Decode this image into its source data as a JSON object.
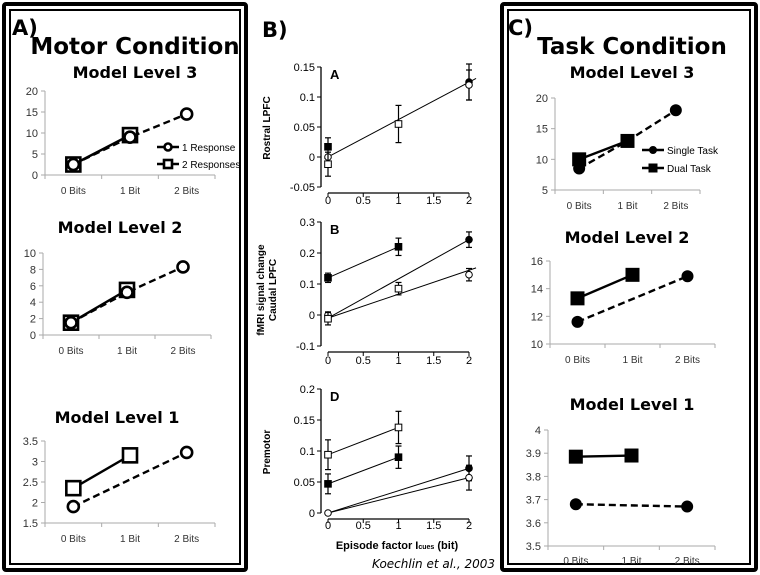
{
  "panels": {
    "a": {
      "label": "A)",
      "title": "Motor Condition"
    },
    "b": {
      "label": "B)",
      "xlabel": "Episode factor I",
      "xlabel_sub": "cues",
      "xlabel_unit": " (bit)",
      "citation": "Koechlin et al., 2003",
      "ylabel_top": "Rostral LPFC",
      "ylabel_mid_1": "fMRI signal change",
      "ylabel_mid_2": "Caudal LPFC",
      "ylabel_bottom": "Premotor"
    },
    "c": {
      "label": "C)",
      "title": "Task Condition"
    }
  },
  "chart_data": [
    {
      "id": "A3",
      "type": "line",
      "title": "Model Level 3",
      "categories": [
        "0 Bits",
        "1 Bit",
        "2 Bits"
      ],
      "ylim": [
        0,
        20
      ],
      "yticks": [
        0,
        5,
        10,
        15,
        20
      ],
      "legend": {
        "placement": "right",
        "entries": [
          "1 Response",
          "2 Responses"
        ]
      },
      "series": [
        {
          "name": "1 Response",
          "marker": "circle-open",
          "dashed": true,
          "values": [
            2.5,
            9,
            14.5
          ]
        },
        {
          "name": "2 Responses",
          "marker": "square-open",
          "dashed": false,
          "values": [
            2.5,
            9.5,
            null
          ]
        }
      ]
    },
    {
      "id": "A2",
      "type": "line",
      "title": "Model Level 2",
      "categories": [
        "0 Bits",
        "1 Bit",
        "2 Bits"
      ],
      "ylim": [
        0,
        10
      ],
      "yticks": [
        0,
        2,
        4,
        6,
        8,
        10
      ],
      "series": [
        {
          "name": "1 Response",
          "marker": "circle-open",
          "dashed": true,
          "values": [
            1.5,
            5.2,
            8.3
          ]
        },
        {
          "name": "2 Responses",
          "marker": "square-open",
          "dashed": false,
          "values": [
            1.5,
            5.5,
            null
          ]
        }
      ]
    },
    {
      "id": "A1",
      "type": "line",
      "title": "Model Level 1",
      "categories": [
        "0 Bits",
        "1 Bit",
        "2 Bits"
      ],
      "ylim": [
        1.5,
        3.5
      ],
      "yticks": [
        1.5,
        2,
        2.5,
        3,
        3.5
      ],
      "series": [
        {
          "name": "1 Response",
          "marker": "circle-open",
          "dashed": true,
          "values": [
            1.9,
            null,
            3.22
          ]
        },
        {
          "name": "2 Responses",
          "marker": "square-open",
          "dashed": false,
          "values": [
            2.35,
            3.15,
            null
          ]
        }
      ]
    },
    {
      "id": "C3",
      "type": "line",
      "title": "Model Level 3",
      "categories": [
        "0 Bits",
        "1 Bit",
        "2 Bits"
      ],
      "ylim": [
        5,
        20
      ],
      "yticks": [
        5,
        10,
        15,
        20
      ],
      "legend": {
        "placement": "right",
        "entries": [
          "Single Task",
          "Dual Task"
        ]
      },
      "series": [
        {
          "name": "Single Task",
          "marker": "circle-filled",
          "dashed": true,
          "values": [
            8.5,
            13,
            18
          ]
        },
        {
          "name": "Dual Task",
          "marker": "square-filled",
          "dashed": false,
          "values": [
            10,
            13,
            null
          ]
        }
      ]
    },
    {
      "id": "C2",
      "type": "line",
      "title": "Model Level 2",
      "categories": [
        "0 Bits",
        "1 Bit",
        "2 Bits"
      ],
      "ylim": [
        10,
        16
      ],
      "yticks": [
        10,
        12,
        14,
        16
      ],
      "series": [
        {
          "name": "Single Task",
          "marker": "circle-filled",
          "dashed": true,
          "values": [
            11.6,
            null,
            14.9
          ]
        },
        {
          "name": "Dual Task",
          "marker": "square-filled",
          "dashed": false,
          "values": [
            13.3,
            15,
            null
          ]
        }
      ]
    },
    {
      "id": "C1",
      "type": "line",
      "title": "Model Level 1",
      "categories": [
        "0 Bits",
        "1 Bit",
        "2 Bits"
      ],
      "ylim": [
        3.5,
        4
      ],
      "yticks": [
        3.5,
        3.6,
        3.7,
        3.8,
        3.9,
        4
      ],
      "series": [
        {
          "name": "Single Task",
          "marker": "circle-filled",
          "dashed": true,
          "values": [
            3.68,
            null,
            3.67
          ]
        },
        {
          "name": "Dual Task",
          "marker": "square-filled",
          "dashed": false,
          "values": [
            3.885,
            3.89,
            null
          ]
        }
      ]
    },
    {
      "id": "BA",
      "type": "scatter",
      "title": "A",
      "ylabel": "Rostral LPFC",
      "xlim": [
        0,
        2
      ],
      "xticks": [
        0,
        0.5,
        1,
        1.5,
        2
      ],
      "ylim": [
        -0.05,
        0.15
      ],
      "yticks": [
        -0.05,
        0,
        0.05,
        0.1,
        0.15
      ],
      "points": [
        {
          "x": 0,
          "y": 0.017,
          "err": 0.015,
          "marker": "square-filled"
        },
        {
          "x": 0,
          "y": 0,
          "err": 0,
          "marker": "circle-open"
        },
        {
          "x": 0,
          "y": -0.012,
          "err": 0.02,
          "marker": "square-open"
        },
        {
          "x": 1,
          "y": 0.055,
          "err": 0.031,
          "marker": "square-open"
        },
        {
          "x": 2,
          "y": 0.125,
          "err": 0.03,
          "marker": "circle-filled"
        },
        {
          "x": 2,
          "y": 0.12,
          "err": 0.025,
          "marker": "circle-open"
        }
      ],
      "lines": [
        {
          "x": [
            -0.05,
            2.1
          ],
          "y": [
            -0.003,
            0.131
          ]
        }
      ]
    },
    {
      "id": "BB",
      "type": "scatter",
      "title": "B",
      "ylabel": "fMRI signal change Caudal LPFC",
      "xlim": [
        0,
        2
      ],
      "xticks": [
        0,
        0.5,
        1,
        1.5,
        2
      ],
      "ylim": [
        -0.1,
        0.3
      ],
      "yticks": [
        -0.1,
        0,
        0.1,
        0.2,
        0.3
      ],
      "points": [
        {
          "x": 0,
          "y": 0.12,
          "err": 0.015,
          "marker": "square-filled"
        },
        {
          "x": 1,
          "y": 0.22,
          "err": 0.028,
          "marker": "square-filled"
        },
        {
          "x": 2,
          "y": 0.243,
          "err": 0.025,
          "marker": "circle-filled"
        },
        {
          "x": 2,
          "y": 0.13,
          "err": 0.02,
          "marker": "circle-open"
        },
        {
          "x": 1,
          "y": 0.085,
          "err": 0.02,
          "marker": "square-open"
        },
        {
          "x": 0,
          "y": 0,
          "err": 0.01,
          "marker": "circle-open"
        },
        {
          "x": 0,
          "y": -0.012,
          "err": 0.02,
          "marker": "square-open"
        }
      ],
      "lines": [
        {
          "x": [
            0,
            1
          ],
          "y": [
            0.12,
            0.22
          ]
        },
        {
          "x": [
            0,
            2
          ],
          "y": [
            -0.01,
            0.243
          ]
        },
        {
          "x": [
            0,
            2.1
          ],
          "y": [
            -0.01,
            0.152
          ]
        }
      ]
    },
    {
      "id": "BD",
      "type": "scatter",
      "title": "D",
      "ylabel": "Premotor",
      "xlim": [
        0,
        2
      ],
      "xticks": [
        0,
        0.5,
        1,
        1.5,
        2
      ],
      "ylim": [
        0,
        0.2
      ],
      "yticks": [
        0,
        0.05,
        0.1,
        0.15,
        0.2
      ],
      "points": [
        {
          "x": 0,
          "y": 0.094,
          "err": 0.024,
          "marker": "square-open"
        },
        {
          "x": 1,
          "y": 0.138,
          "err": 0.026,
          "marker": "square-open"
        },
        {
          "x": 0,
          "y": 0.047,
          "err": 0.016,
          "marker": "square-filled"
        },
        {
          "x": 1,
          "y": 0.09,
          "err": 0.018,
          "marker": "square-filled"
        },
        {
          "x": 0,
          "y": 0,
          "err": 0,
          "marker": "circle-open"
        },
        {
          "x": 2,
          "y": 0.072,
          "err": 0.02,
          "marker": "circle-filled"
        },
        {
          "x": 2,
          "y": 0.057,
          "err": 0.02,
          "marker": "circle-open"
        }
      ],
      "lines": [
        {
          "x": [
            0,
            1
          ],
          "y": [
            0.094,
            0.138
          ]
        },
        {
          "x": [
            0,
            1
          ],
          "y": [
            0.047,
            0.09
          ]
        },
        {
          "x": [
            0,
            2
          ],
          "y": [
            0,
            0.072
          ]
        },
        {
          "x": [
            0,
            2
          ],
          "y": [
            0,
            0.057
          ]
        }
      ]
    }
  ]
}
